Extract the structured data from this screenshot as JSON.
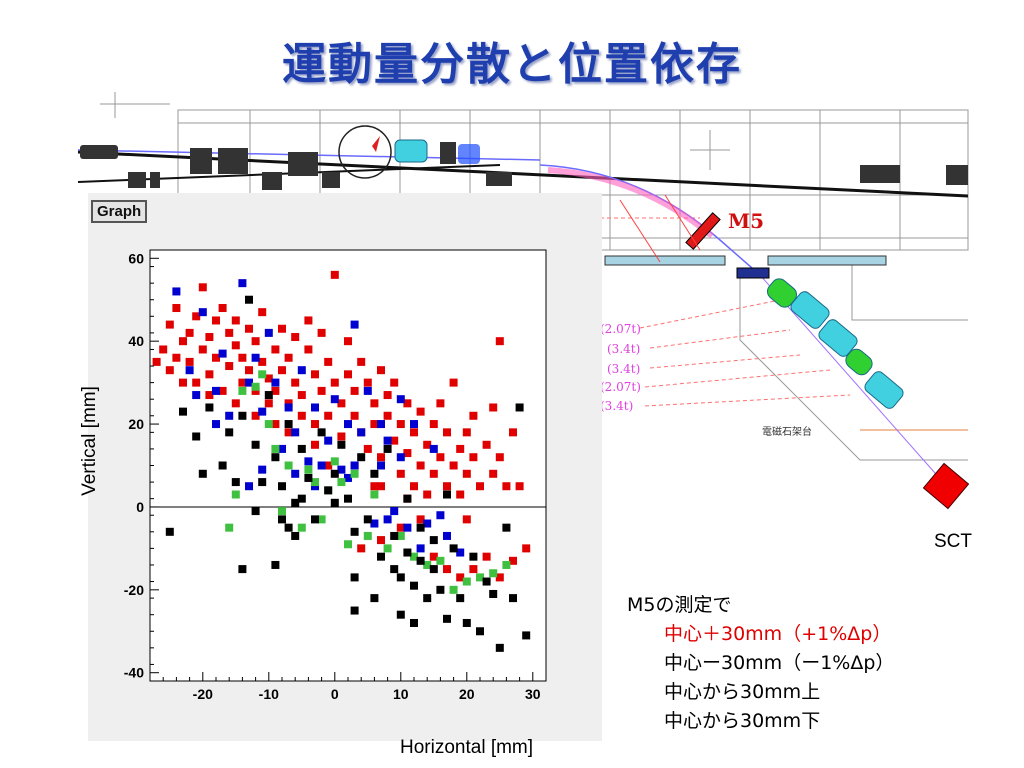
{
  "title": "運動量分散と位置依存",
  "graph_label": "Graph",
  "beamline": {
    "m5_label": "M5",
    "sct_label": "SCT",
    "magnet_stand_label": "電磁石架台",
    "magnet_tags": [
      "(2.07t)",
      "(3.4t)",
      "(3.4t)",
      "(2.07t)",
      "(3.4t)"
    ]
  },
  "notes": {
    "heading": "M5の測定で",
    "items": [
      {
        "text": "中心＋30mm（+1%Δp）",
        "color": "#e00000"
      },
      {
        "text": "中心ー30mm（ー1%Δp）",
        "color": "#000000"
      },
      {
        "text": "中心から30mm上",
        "color": "#000000"
      },
      {
        "text": "中心から30mm下",
        "color": "#000000"
      }
    ]
  },
  "chart_data": {
    "type": "scatter",
    "xlabel": "Horizontal [mm]",
    "ylabel": "Vertical [mm]",
    "xlim": [
      -28,
      32
    ],
    "ylim": [
      -42,
      62
    ],
    "xticks": [
      -20,
      -10,
      0,
      10,
      20,
      30
    ],
    "yticks": [
      -40,
      -20,
      0,
      20,
      40,
      60
    ],
    "zero_line": true,
    "series": [
      {
        "color": "#e00000",
        "points": [
          [
            -27,
            35
          ],
          [
            -26,
            38
          ],
          [
            -25,
            33
          ],
          [
            -25,
            44
          ],
          [
            -24,
            36
          ],
          [
            -24,
            48
          ],
          [
            -23,
            40
          ],
          [
            -23,
            30
          ],
          [
            -22,
            42
          ],
          [
            -22,
            35
          ],
          [
            -21,
            46
          ],
          [
            -20,
            38
          ],
          [
            -20,
            53
          ],
          [
            -19,
            41
          ],
          [
            -19,
            32
          ],
          [
            -18,
            45
          ],
          [
            -18,
            36
          ],
          [
            -17,
            48
          ],
          [
            -17,
            28
          ],
          [
            -16,
            42
          ],
          [
            -16,
            34
          ],
          [
            -15,
            39
          ],
          [
            -15,
            45
          ],
          [
            -14,
            30
          ],
          [
            -14,
            36
          ],
          [
            -13,
            43
          ],
          [
            -13,
            33
          ],
          [
            -12,
            28
          ],
          [
            -12,
            40
          ],
          [
            -11,
            35
          ],
          [
            -11,
            47
          ],
          [
            -10,
            31
          ],
          [
            -10,
            25
          ],
          [
            -9,
            38
          ],
          [
            -9,
            28
          ],
          [
            -8,
            43
          ],
          [
            -8,
            33
          ],
          [
            -7,
            36
          ],
          [
            -7,
            25
          ],
          [
            -6,
            41
          ],
          [
            -6,
            30
          ],
          [
            -5,
            27
          ],
          [
            -5,
            22
          ],
          [
            -4,
            38
          ],
          [
            -4,
            45
          ],
          [
            -3,
            32
          ],
          [
            -3,
            20
          ],
          [
            -2,
            42
          ],
          [
            -2,
            28
          ],
          [
            -1,
            35
          ],
          [
            -1,
            22
          ],
          [
            0,
            56
          ],
          [
            0,
            30
          ],
          [
            1,
            25
          ],
          [
            1,
            17
          ],
          [
            2,
            40
          ],
          [
            2,
            32
          ],
          [
            3,
            22
          ],
          [
            3,
            28
          ],
          [
            4,
            35
          ],
          [
            4,
            18
          ],
          [
            5,
            30
          ],
          [
            5,
            14
          ],
          [
            6,
            25
          ],
          [
            6,
            20
          ],
          [
            7,
            33
          ],
          [
            7,
            12
          ],
          [
            8,
            22
          ],
          [
            8,
            27
          ],
          [
            9,
            16
          ],
          [
            9,
            30
          ],
          [
            10,
            20
          ],
          [
            10,
            8
          ],
          [
            11,
            25
          ],
          [
            11,
            13
          ],
          [
            12,
            18
          ],
          [
            12,
            5
          ],
          [
            13,
            23
          ],
          [
            13,
            10
          ],
          [
            14,
            15
          ],
          [
            14,
            3
          ],
          [
            15,
            20
          ],
          [
            15,
            8
          ],
          [
            16,
            12
          ],
          [
            16,
            25
          ],
          [
            17,
            5
          ],
          [
            17,
            18
          ],
          [
            18,
            10
          ],
          [
            18,
            30
          ],
          [
            19,
            14
          ],
          [
            19,
            3
          ],
          [
            20,
            8
          ],
          [
            20,
            18
          ],
          [
            21,
            12
          ],
          [
            21,
            22
          ],
          [
            22,
            5
          ],
          [
            23,
            15
          ],
          [
            24,
            24
          ],
          [
            24,
            8
          ],
          [
            25,
            40
          ],
          [
            25,
            12
          ],
          [
            26,
            5
          ],
          [
            27,
            18
          ],
          [
            28,
            5
          ],
          [
            -9,
            20
          ],
          [
            -7,
            18
          ],
          [
            -3,
            15
          ],
          [
            3,
            10
          ],
          [
            -1,
            10
          ],
          [
            7,
            5
          ],
          [
            11,
            2
          ],
          [
            13,
            -3
          ],
          [
            15,
            -12
          ],
          [
            17,
            -15
          ],
          [
            19,
            -17
          ],
          [
            21,
            -15
          ],
          [
            23,
            -12
          ],
          [
            25,
            -17
          ],
          [
            27,
            -13
          ],
          [
            29,
            -10
          ],
          [
            4,
            -10
          ],
          [
            7,
            -8
          ],
          [
            10,
            -5
          ],
          [
            -19,
            27
          ],
          [
            -21,
            30
          ],
          [
            6,
            5
          ],
          [
            -12,
            22
          ],
          [
            -15,
            25
          ],
          [
            20,
            -3
          ]
        ]
      },
      {
        "color": "#0000d0",
        "points": [
          [
            -24,
            52
          ],
          [
            -22,
            33
          ],
          [
            -21,
            27
          ],
          [
            -20,
            47
          ],
          [
            -18,
            28
          ],
          [
            -18,
            20
          ],
          [
            -17,
            37
          ],
          [
            -16,
            22
          ],
          [
            -14,
            54
          ],
          [
            -13,
            30
          ],
          [
            -12,
            36
          ],
          [
            -11,
            23
          ],
          [
            -11,
            9
          ],
          [
            -10,
            42
          ],
          [
            -9,
            30
          ],
          [
            -8,
            14
          ],
          [
            -7,
            24
          ],
          [
            -6,
            18
          ],
          [
            -5,
            33
          ],
          [
            -4,
            11
          ],
          [
            -3,
            24
          ],
          [
            -2,
            10
          ],
          [
            -1,
            16
          ],
          [
            0,
            26
          ],
          [
            1,
            9
          ],
          [
            2,
            20
          ],
          [
            3,
            44
          ],
          [
            3,
            10
          ],
          [
            4,
            18
          ],
          [
            5,
            28
          ],
          [
            6,
            -4
          ],
          [
            7,
            20
          ],
          [
            7,
            10
          ],
          [
            8,
            16
          ],
          [
            9,
            -1
          ],
          [
            10,
            26
          ],
          [
            10,
            12
          ],
          [
            11,
            -5
          ],
          [
            12,
            20
          ],
          [
            13,
            -10
          ],
          [
            14,
            -4
          ],
          [
            15,
            14
          ],
          [
            16,
            -2
          ],
          [
            17,
            -7
          ],
          [
            19,
            -11
          ],
          [
            -6,
            8
          ],
          [
            -3,
            5
          ],
          [
            8,
            -3
          ],
          [
            -13,
            5
          ],
          [
            2,
            7
          ]
        ]
      },
      {
        "color": "#40c040",
        "points": [
          [
            -14,
            28
          ],
          [
            -12,
            29
          ],
          [
            -11,
            32
          ],
          [
            -10,
            20
          ],
          [
            -9,
            14
          ],
          [
            -8,
            -1
          ],
          [
            -7,
            10
          ],
          [
            -5,
            -5
          ],
          [
            -4,
            9
          ],
          [
            -3,
            6
          ],
          [
            -2,
            -3
          ],
          [
            -1,
            4
          ],
          [
            0,
            11
          ],
          [
            1,
            6
          ],
          [
            2,
            -9
          ],
          [
            3,
            8
          ],
          [
            5,
            -7
          ],
          [
            6,
            3
          ],
          [
            8,
            -10
          ],
          [
            10,
            -7
          ],
          [
            12,
            -12
          ],
          [
            14,
            -14
          ],
          [
            16,
            -13
          ],
          [
            18,
            -20
          ],
          [
            20,
            -18
          ],
          [
            22,
            -17
          ],
          [
            24,
            -16
          ],
          [
            26,
            -14
          ],
          [
            -15,
            3
          ],
          [
            -16,
            -5
          ]
        ]
      },
      {
        "color": "#000000",
        "points": [
          [
            -23,
            23
          ],
          [
            -21,
            17
          ],
          [
            -20,
            8
          ],
          [
            -19,
            24
          ],
          [
            -17,
            10
          ],
          [
            -16,
            18
          ],
          [
            -15,
            6
          ],
          [
            -14,
            22
          ],
          [
            -13,
            50
          ],
          [
            -12,
            15
          ],
          [
            -11,
            6
          ],
          [
            -10,
            27
          ],
          [
            -9,
            12
          ],
          [
            -8,
            5
          ],
          [
            -7,
            20
          ],
          [
            -6,
            1
          ],
          [
            -5,
            14
          ],
          [
            -4,
            7
          ],
          [
            -3,
            -3
          ],
          [
            -2,
            18
          ],
          [
            -1,
            4
          ],
          [
            0,
            8
          ],
          [
            1,
            15
          ],
          [
            2,
            2
          ],
          [
            3,
            -6
          ],
          [
            3,
            -17
          ],
          [
            3,
            -25
          ],
          [
            4,
            12
          ],
          [
            5,
            -3
          ],
          [
            6,
            8
          ],
          [
            7,
            -12
          ],
          [
            8,
            14
          ],
          [
            9,
            -7
          ],
          [
            9,
            -15
          ],
          [
            10,
            -17
          ],
          [
            10,
            -26
          ],
          [
            11,
            2
          ],
          [
            11,
            -11
          ],
          [
            12,
            -19
          ],
          [
            12,
            -28
          ],
          [
            13,
            -5
          ],
          [
            13,
            -13
          ],
          [
            14,
            -22
          ],
          [
            15,
            -8
          ],
          [
            15,
            -15
          ],
          [
            16,
            -20
          ],
          [
            17,
            -27
          ],
          [
            18,
            -10
          ],
          [
            19,
            -22
          ],
          [
            20,
            -28
          ],
          [
            21,
            -12
          ],
          [
            22,
            -30
          ],
          [
            23,
            -18
          ],
          [
            25,
            -34
          ],
          [
            26,
            -5
          ],
          [
            27,
            -22
          ],
          [
            28,
            24
          ],
          [
            29,
            -31
          ],
          [
            -7,
            -5
          ],
          [
            -8,
            -3
          ],
          [
            -6,
            -7
          ],
          [
            -9,
            -14
          ],
          [
            -12,
            -1
          ],
          [
            -14,
            -15
          ],
          [
            -25,
            -6
          ],
          [
            -5,
            2
          ],
          [
            0,
            1
          ],
          [
            6,
            -22
          ],
          [
            24,
            -21
          ],
          [
            17,
            3
          ]
        ]
      }
    ]
  }
}
